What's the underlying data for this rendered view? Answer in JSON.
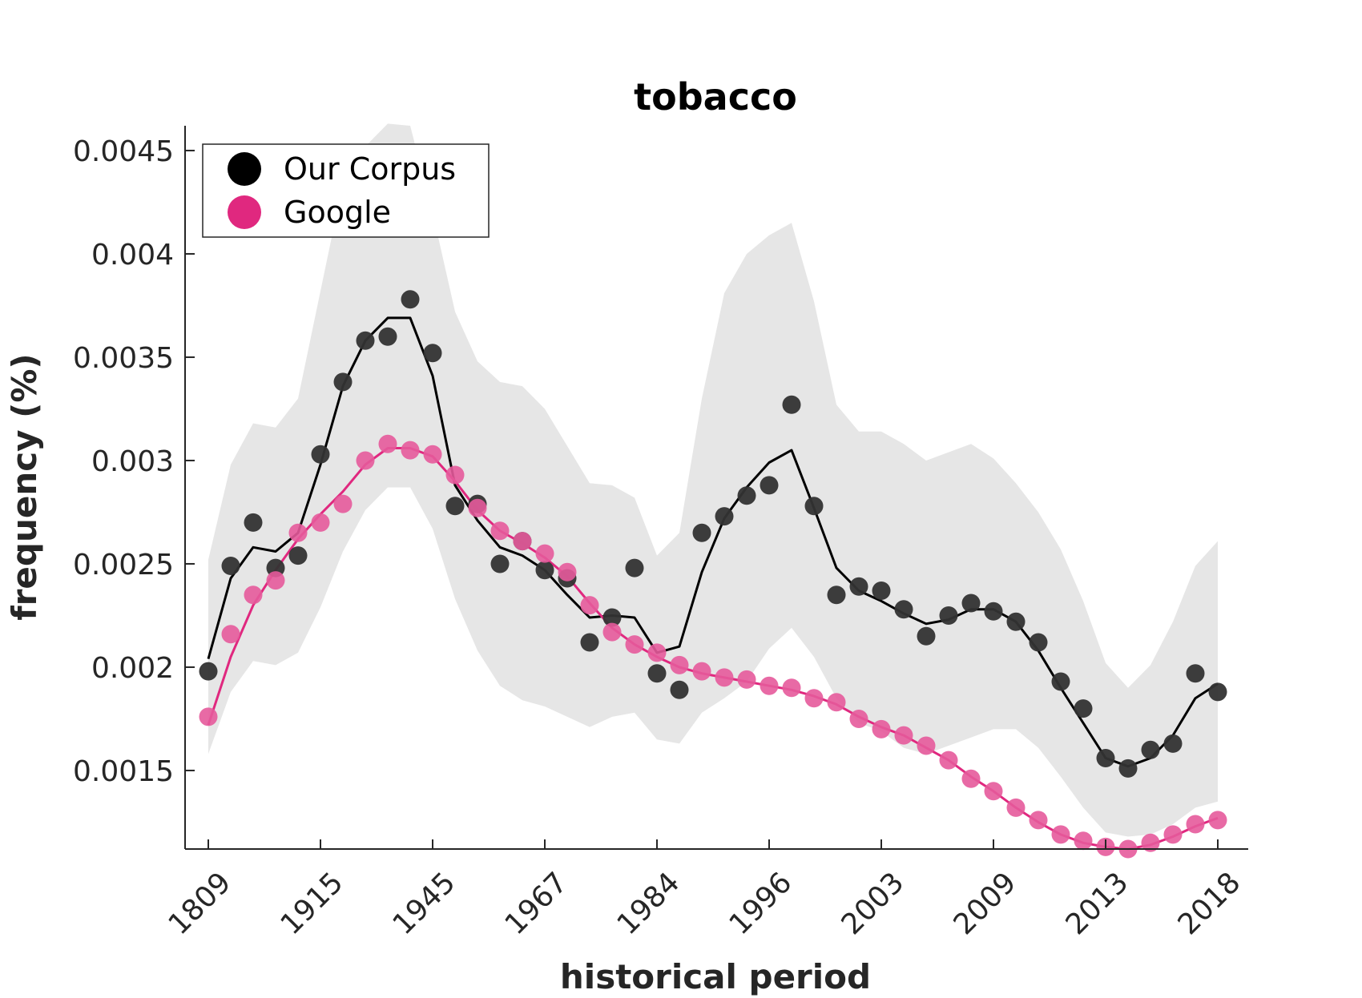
{
  "chart_data": {
    "type": "line",
    "title": "tobacco",
    "xlabel": "historical period",
    "ylabel": "frequency (%)",
    "x_tick_labels": [
      "1809",
      "1915",
      "1945",
      "1967",
      "1984",
      "1996",
      "2003",
      "2009",
      "2013",
      "2018"
    ],
    "y_ticks": [
      0.0015,
      0.002,
      0.0025,
      0.003,
      0.0035,
      0.004,
      0.0045
    ],
    "y_tick_labels": [
      "0.0015",
      "0.002",
      "0.0025",
      "0.003",
      "0.0035",
      "0.004",
      "0.0045"
    ],
    "ylim": [
      0.00112,
      0.00462
    ],
    "xlim": [
      -1,
      47
    ],
    "legend_position": "top-left",
    "series": [
      {
        "name": "Our Corpus",
        "color": "#000000",
        "marker_color": "#333333",
        "points": [
          0.00198,
          0.00249,
          0.0027,
          0.00248,
          0.00254,
          0.00303,
          0.00338,
          0.00358,
          0.0036,
          0.00378,
          0.00352,
          0.00278,
          0.00279,
          0.0025,
          0.00261,
          0.00247,
          0.00243,
          0.00212,
          0.00224,
          0.00248,
          0.00197,
          0.00189,
          0.00265,
          0.00273,
          0.00283,
          0.00288,
          0.00327,
          0.00278,
          0.00235,
          0.00239,
          0.00237,
          0.00228,
          0.00215,
          0.00225,
          0.00231,
          0.00227,
          0.00222,
          0.00212,
          0.00193,
          0.0018,
          0.00156,
          0.00151,
          0.0016,
          0.00163,
          0.00197,
          0.00188
        ],
        "smoothed": [
          0.00204,
          0.00243,
          0.00258,
          0.00256,
          0.00265,
          0.00298,
          0.00336,
          0.00358,
          0.00369,
          0.00369,
          0.00341,
          0.00288,
          0.00271,
          0.00258,
          0.00254,
          0.00247,
          0.00235,
          0.00224,
          0.00225,
          0.00224,
          0.00207,
          0.0021,
          0.00246,
          0.00272,
          0.00287,
          0.00299,
          0.00305,
          0.00277,
          0.00248,
          0.00237,
          0.00232,
          0.00226,
          0.00221,
          0.00223,
          0.00228,
          0.00228,
          0.00222,
          0.00208,
          0.0019,
          0.00173,
          0.00156,
          0.00152,
          0.00156,
          0.00167,
          0.00185,
          0.00192
        ],
        "band_upper": [
          0.00252,
          0.00298,
          0.00318,
          0.00316,
          0.0033,
          0.00382,
          0.00434,
          0.00452,
          0.00463,
          0.00462,
          0.0042,
          0.00372,
          0.00348,
          0.00338,
          0.00336,
          0.00325,
          0.00307,
          0.00289,
          0.00288,
          0.00282,
          0.00254,
          0.00265,
          0.0033,
          0.00381,
          0.004,
          0.00409,
          0.00415,
          0.00377,
          0.00327,
          0.00314,
          0.00314,
          0.00308,
          0.003,
          0.00304,
          0.00308,
          0.00301,
          0.00289,
          0.00275,
          0.00257,
          0.00232,
          0.00202,
          0.0019,
          0.00201,
          0.00222,
          0.00249,
          0.00261
        ],
        "band_lower": [
          0.00158,
          0.00188,
          0.00203,
          0.00201,
          0.00207,
          0.00229,
          0.00256,
          0.00276,
          0.00287,
          0.00287,
          0.00267,
          0.00233,
          0.00208,
          0.00191,
          0.00184,
          0.00181,
          0.00176,
          0.00171,
          0.00176,
          0.00178,
          0.00165,
          0.00163,
          0.00178,
          0.00185,
          0.00193,
          0.00209,
          0.00219,
          0.00205,
          0.00185,
          0.00173,
          0.00169,
          0.00161,
          0.00158,
          0.00162,
          0.00166,
          0.0017,
          0.0017,
          0.00161,
          0.00147,
          0.00132,
          0.0012,
          0.00118,
          0.00119,
          0.00124,
          0.00132,
          0.00135
        ]
      },
      {
        "name": "Google",
        "color": "#e0287f",
        "marker_color": "#e55a9b",
        "points": [
          0.00176,
          0.00216,
          0.00235,
          0.00242,
          0.00265,
          0.0027,
          0.00279,
          0.003,
          0.00308,
          0.00305,
          0.00303,
          0.00293,
          0.00277,
          0.00266,
          0.00261,
          0.00255,
          0.00246,
          0.0023,
          0.00217,
          0.00211,
          0.00207,
          0.00201,
          0.00198,
          0.00195,
          0.00194,
          0.00191,
          0.0019,
          0.00185,
          0.00183,
          0.00175,
          0.0017,
          0.00167,
          0.00162,
          0.00155,
          0.00146,
          0.0014,
          0.00132,
          0.00126,
          0.00119,
          0.00116,
          0.00113,
          0.00112,
          0.00115,
          0.00119,
          0.00124,
          0.00126
        ],
        "smoothed": [
          0.00172,
          0.00205,
          0.0023,
          0.00247,
          0.00262,
          0.00274,
          0.00285,
          0.00298,
          0.00306,
          0.00306,
          0.00302,
          0.0029,
          0.00276,
          0.00266,
          0.0026,
          0.00253,
          0.00244,
          0.00231,
          0.00219,
          0.00211,
          0.00205,
          0.002,
          0.00197,
          0.00195,
          0.00193,
          0.00191,
          0.00189,
          0.00186,
          0.00182,
          0.00176,
          0.00171,
          0.00167,
          0.00161,
          0.00155,
          0.00147,
          0.0014,
          0.00132,
          0.00125,
          0.00119,
          0.00115,
          0.00113,
          0.00112,
          0.00114,
          0.00118,
          0.00123,
          0.00127
        ]
      }
    ]
  }
}
